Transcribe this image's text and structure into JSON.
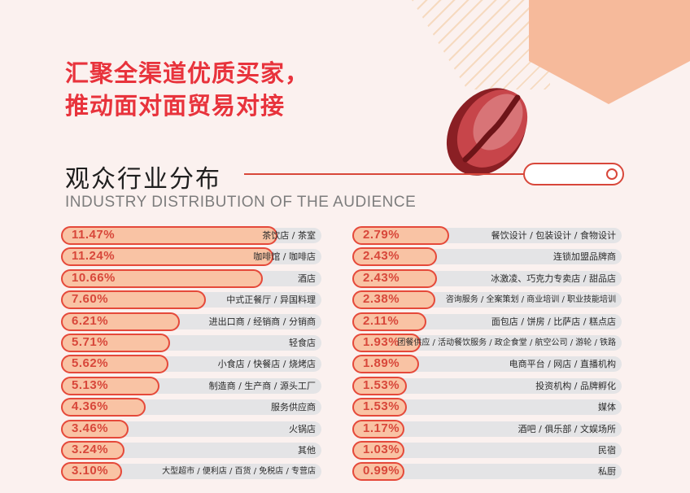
{
  "headline": {
    "line1": "汇聚全渠道优质买家，",
    "line2": "推动面对面贸易对接"
  },
  "section": {
    "title_cn": "观众行业分布",
    "title_en": "INDUSTRY DISTRIBUTION OF THE AUDIENCE"
  },
  "colors": {
    "accent": "#e8333c",
    "bar_fill": "#f9c3a4",
    "bar_border": "#e5493a",
    "track": "#e4e4e6",
    "peach_shape": "#f6ba9b"
  },
  "chart_data": {
    "type": "bar",
    "orientation": "horizontal",
    "unit": "%",
    "title": "观众行业分布",
    "subtitle": "INDUSTRY DISTRIBUTION OF THE AUDIENCE",
    "xlim": [
      0,
      25
    ],
    "left_column": [
      {
        "label": "茶饮店 / 茶室",
        "value": 11.47,
        "text": "11.47%"
      },
      {
        "label": "咖啡馆 / 咖啡店",
        "value": 11.24,
        "text": "11.24%"
      },
      {
        "label": "酒店",
        "value": 10.66,
        "text": "10.66%"
      },
      {
        "label": "中式正餐厅 / 异国料理",
        "value": 7.6,
        "text": "7.60%"
      },
      {
        "label": "进出口商 / 经销商 / 分销商",
        "value": 6.21,
        "text": "6.21%"
      },
      {
        "label": "轻食店",
        "value": 5.71,
        "text": "5.71%"
      },
      {
        "label": "小食店 / 快餐店 / 烧烤店",
        "value": 5.62,
        "text": "5.62%"
      },
      {
        "label": "制造商 / 生产商 / 源头工厂",
        "value": 5.13,
        "text": "5.13%"
      },
      {
        "label": "服务供应商",
        "value": 4.36,
        "text": "4.36%"
      },
      {
        "label": "火锅店",
        "value": 3.46,
        "text": "3.46%"
      },
      {
        "label": "其他",
        "value": 3.24,
        "text": "3.24%"
      },
      {
        "label": "大型超市 / 便利店 / 百货 / 免税店 / 专营店",
        "value": 3.1,
        "text": "3.10%"
      }
    ],
    "right_column": [
      {
        "label": "餐饮设计 / 包装设计 / 食物设计",
        "value": 2.79,
        "text": "2.79%"
      },
      {
        "label": "连锁加盟品牌商",
        "value": 2.43,
        "text": "2.43%"
      },
      {
        "label": "冰激凌、巧克力专卖店 / 甜品店",
        "value": 2.43,
        "text": "2.43%"
      },
      {
        "label": "咨询服务 / 全案策划 / 商业培训 / 职业技能培训",
        "value": 2.38,
        "text": "2.38%"
      },
      {
        "label": "面包店 / 饼房 / 比萨店 / 糕点店",
        "value": 2.11,
        "text": "2.11%"
      },
      {
        "label": "团餐供应 / 活动餐饮服务 / 政企食堂 / 航空公司 / 游轮 / 铁路",
        "value": 1.93,
        "text": "1.93%"
      },
      {
        "label": "电商平台 / 网店 / 直播机构",
        "value": 1.89,
        "text": "1.89%"
      },
      {
        "label": "投资机构 / 品牌孵化",
        "value": 1.53,
        "text": "1.53%"
      },
      {
        "label": "媒体",
        "value": 1.53,
        "text": "1.53%"
      },
      {
        "label": "酒吧 / 俱乐部 / 文娱场所",
        "value": 1.17,
        "text": "1.17%"
      },
      {
        "label": "民宿",
        "value": 1.03,
        "text": "1.03%"
      },
      {
        "label": "私厨",
        "value": 0.99,
        "text": "0.99%"
      }
    ]
  }
}
